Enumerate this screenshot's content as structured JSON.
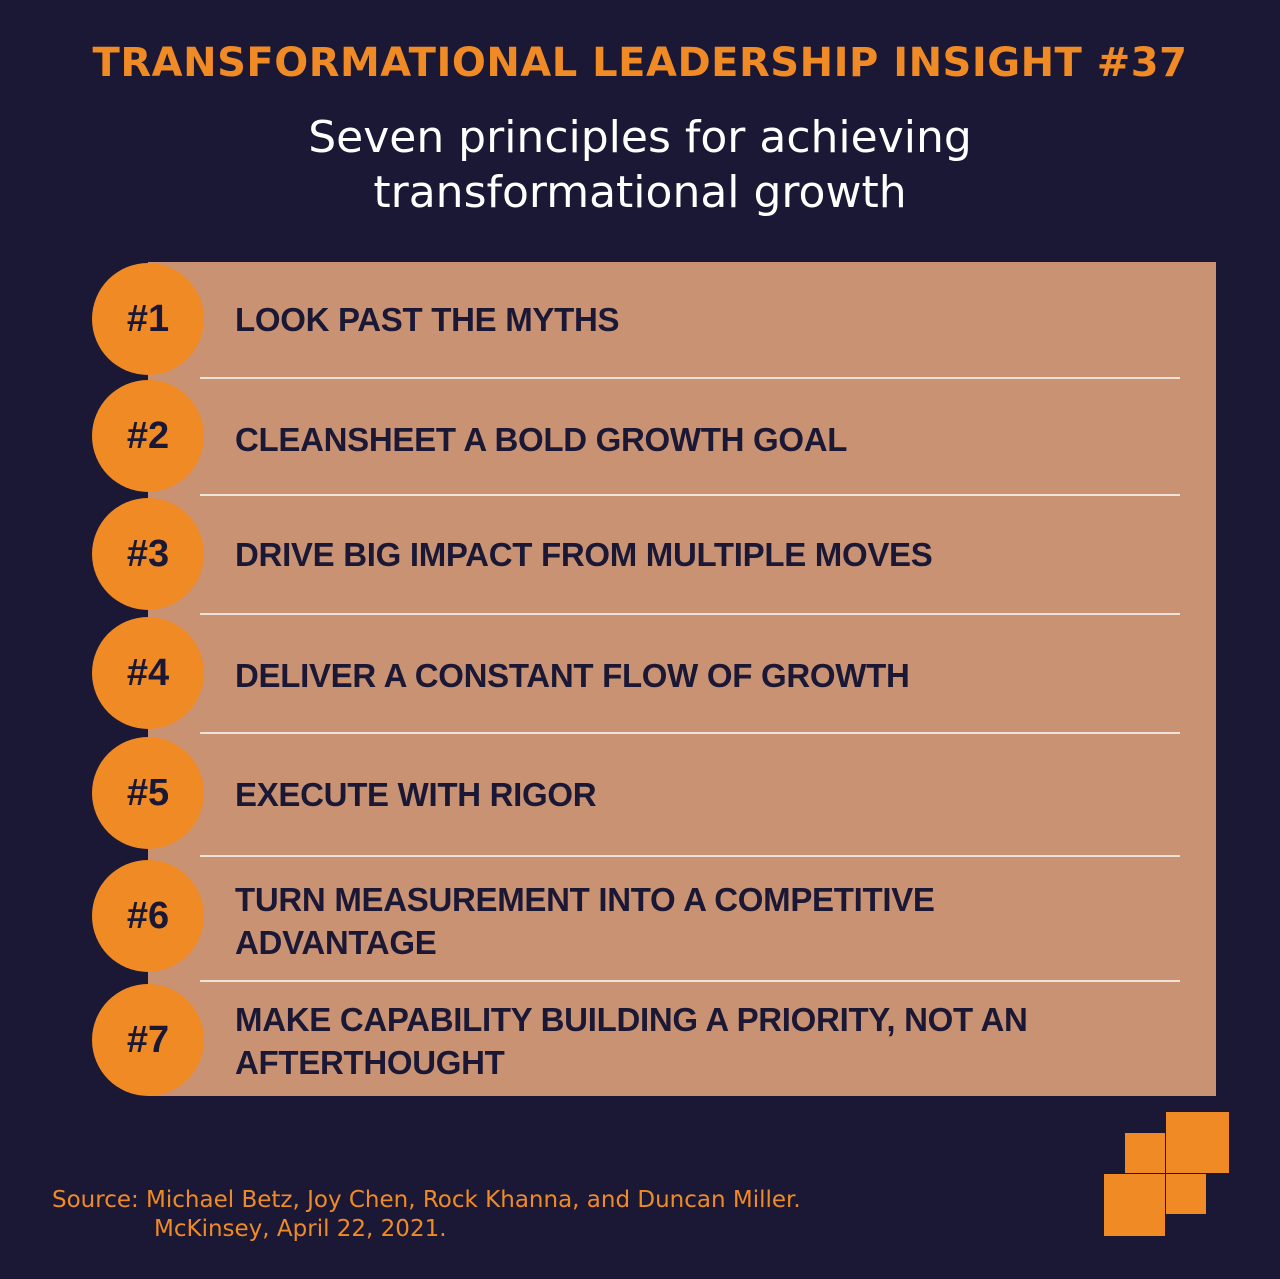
{
  "header": {
    "insight_title": "TRANSFORMATIONAL LEADERSHIP INSIGHT #37",
    "subtitle_line1": "Seven principles for achieving",
    "subtitle_line2": "transformational growth"
  },
  "principles": [
    {
      "number": "#1",
      "lines": [
        "LOOK PAST THE MYTHS"
      ]
    },
    {
      "number": "#2",
      "lines": [
        "CLEANSHEET A BOLD GROWTH GOAL"
      ]
    },
    {
      "number": "#3",
      "lines": [
        "DRIVE BIG IMPACT FROM MULTIPLE MOVES"
      ]
    },
    {
      "number": "#4",
      "lines": [
        "DELIVER A CONSTANT FLOW OF GROWTH"
      ]
    },
    {
      "number": "#5",
      "lines": [
        "EXECUTE WITH RIGOR"
      ]
    },
    {
      "number": "#6",
      "lines": [
        "TURN MEASUREMENT INTO A COMPETITIVE",
        "ADVANTAGE"
      ]
    },
    {
      "number": "#7",
      "lines": [
        "MAKE CAPABILITY BUILDING A PRIORITY, NOT AN",
        "AFTERTHOUGHT"
      ]
    }
  ],
  "source": {
    "line1": "Source: Michael Betz, Joy Chen, Rock Khanna, and Duncan Miller.",
    "line2": "McKinsey, April 22, 2021."
  },
  "colors": {
    "background": "#1b1836",
    "accent_orange": "#f08a24",
    "panel": "#c99273",
    "divider": "#efe2d8",
    "text_dark": "#1b1836",
    "text_light": "#ffffff"
  },
  "icons": {
    "logo": "stacked-squares-logo-icon"
  }
}
